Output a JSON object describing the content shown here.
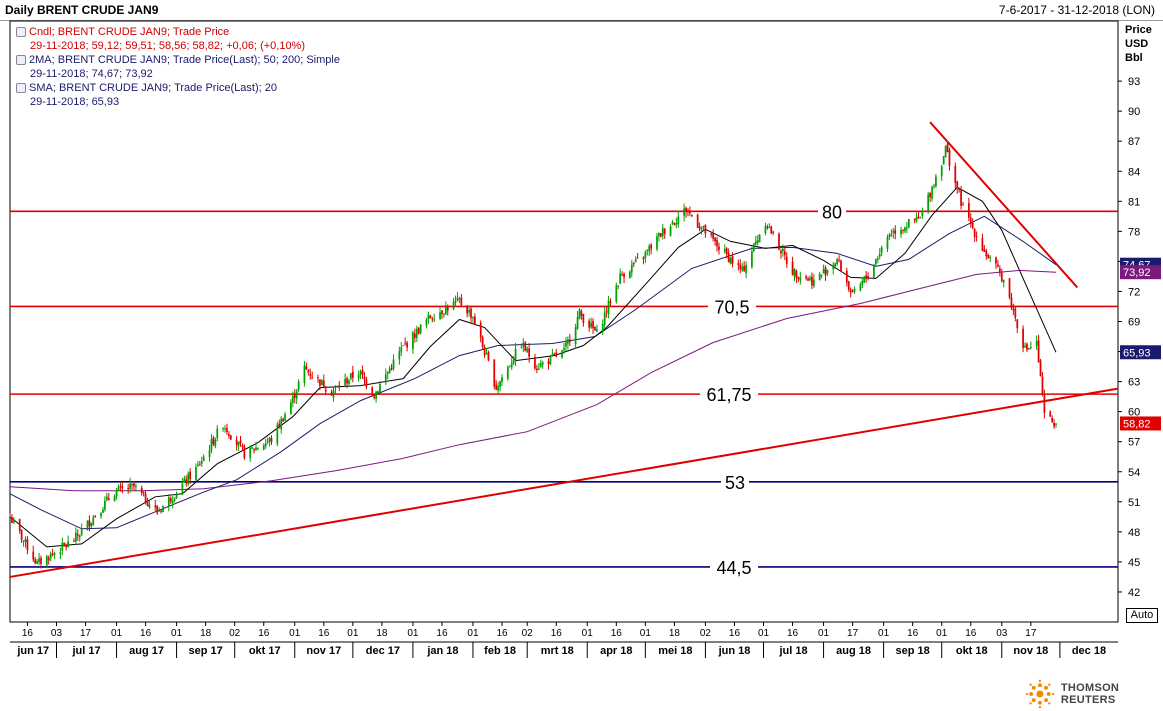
{
  "header": {
    "title": "Daily BRENT CRUDE JAN9",
    "date_range": "7-6-2017 - 31-12-2018 (LON)"
  },
  "legend": [
    {
      "line1": "Cndl; BRENT CRUDE JAN9; Trade Price",
      "line2": "29-11-2018; 59,12; 59,51; 58,56; 58,82; +0,06; (+0,10%)",
      "color": "#d00000"
    },
    {
      "line1": "2MA; BRENT CRUDE JAN9; Trade Price(Last);  50; 200; Simple",
      "line2": "29-11-2018; 74,67; 73,92",
      "color": "#1a1a6e"
    },
    {
      "line1": "SMA; BRENT CRUDE JAN9; Trade Price(Last);  20",
      "line2": "29-11-2018; 65,93",
      "color": "#1a1a6e"
    }
  ],
  "auto_label": "Auto",
  "logo_text": "THOMSON REUTERS",
  "logo_icon": "thomson-reuters-logo-icon",
  "chart_data": {
    "type": "candlestick",
    "title": "Daily BRENT CRUDE JAN9",
    "ylabel_lines": [
      "Price",
      "USD",
      "Bbl"
    ],
    "ylim": [
      39,
      99
    ],
    "yticks": [
      42,
      45,
      48,
      51,
      54,
      57,
      60,
      63,
      66,
      69,
      72,
      75,
      78,
      81,
      84,
      87,
      90,
      93
    ],
    "x_day_ticks": [
      "16",
      "03",
      "17",
      "01",
      "16",
      "01",
      "18",
      "02",
      "16",
      "01",
      "16",
      "01",
      "18",
      "01",
      "16",
      "01",
      "16",
      "02",
      "16",
      "01",
      "16",
      "01",
      "18",
      "02",
      "16",
      "01",
      "16",
      "01",
      "17",
      "01",
      "16",
      "01",
      "16",
      "03",
      "17"
    ],
    "x_month_ticks": [
      "jun 17",
      "jul 17",
      "aug 17",
      "sep 17",
      "okt 17",
      "nov 17",
      "dec 17",
      "jan 18",
      "feb 18",
      "mrt 18",
      "apr 18",
      "mei 18",
      "jun 18",
      "jul 18",
      "aug 18",
      "sep 18",
      "okt 18",
      "nov 18",
      "dec 18"
    ],
    "price_path": [
      [
        "2017-06-07",
        49.5
      ],
      [
        "2017-06-21",
        44.8
      ],
      [
        "2017-07-10",
        47.2
      ],
      [
        "2017-07-31",
        52.0
      ],
      [
        "2017-08-10",
        52.5
      ],
      [
        "2017-08-22",
        50.0
      ],
      [
        "2017-09-01",
        52.0
      ],
      [
        "2017-09-12",
        54.5
      ],
      [
        "2017-09-25",
        58.8
      ],
      [
        "2017-10-06",
        55.8
      ],
      [
        "2017-10-20",
        57.2
      ],
      [
        "2017-10-31",
        61.3
      ],
      [
        "2017-11-06",
        64.3
      ],
      [
        "2017-11-20",
        62.0
      ],
      [
        "2017-12-04",
        64.0
      ],
      [
        "2017-12-12",
        61.7
      ],
      [
        "2017-12-26",
        66.2
      ],
      [
        "2018-01-10",
        69.5
      ],
      [
        "2018-01-25",
        71.0
      ],
      [
        "2018-02-01",
        69.5
      ],
      [
        "2018-02-13",
        62.4
      ],
      [
        "2018-02-26",
        66.8
      ],
      [
        "2018-03-06",
        64.5
      ],
      [
        "2018-03-20",
        66.0
      ],
      [
        "2018-03-28",
        69.8
      ],
      [
        "2018-04-06",
        67.8
      ],
      [
        "2018-04-18",
        73.5
      ],
      [
        "2018-04-30",
        75.5
      ],
      [
        "2018-05-10",
        78.0
      ],
      [
        "2018-05-22",
        80.2
      ],
      [
        "2018-06-05",
        77.0
      ],
      [
        "2018-06-20",
        74.0
      ],
      [
        "2018-07-02",
        79.0
      ],
      [
        "2018-07-16",
        74.0
      ],
      [
        "2018-07-27",
        73.0
      ],
      [
        "2018-08-08",
        75.2
      ],
      [
        "2018-08-16",
        71.5
      ],
      [
        "2018-08-24",
        73.7
      ],
      [
        "2018-09-04",
        77.8
      ],
      [
        "2018-09-20",
        79.3
      ],
      [
        "2018-10-01",
        85.0
      ],
      [
        "2018-10-03",
        86.3
      ],
      [
        "2018-10-12",
        80.3
      ],
      [
        "2018-10-23",
        76.0
      ],
      [
        "2018-11-02",
        73.2
      ],
      [
        "2018-11-13",
        66.2
      ],
      [
        "2018-11-19",
        66.8
      ],
      [
        "2018-11-23",
        59.6
      ],
      [
        "2018-11-29",
        58.82
      ]
    ],
    "sma20_path": [
      [
        "2017-06-07",
        49.5
      ],
      [
        "2017-06-26",
        46.5
      ],
      [
        "2017-07-14",
        46.8
      ],
      [
        "2017-08-01",
        49.3
      ],
      [
        "2017-08-21",
        51.5
      ],
      [
        "2017-09-04",
        51.8
      ],
      [
        "2017-09-22",
        54.8
      ],
      [
        "2017-10-13",
        56.9
      ],
      [
        "2017-10-31",
        59.5
      ],
      [
        "2017-11-14",
        62.4
      ],
      [
        "2017-12-05",
        62.6
      ],
      [
        "2017-12-27",
        63.3
      ],
      [
        "2018-01-10",
        66.5
      ],
      [
        "2018-01-25",
        69.2
      ],
      [
        "2018-02-07",
        68.4
      ],
      [
        "2018-02-23",
        65.1
      ],
      [
        "2018-03-15",
        65.6
      ],
      [
        "2018-03-30",
        66.6
      ],
      [
        "2018-04-11",
        68.4
      ],
      [
        "2018-05-01",
        72.7
      ],
      [
        "2018-05-18",
        76.4
      ],
      [
        "2018-06-01",
        78.2
      ],
      [
        "2018-06-14",
        77.0
      ],
      [
        "2018-07-02",
        76.3
      ],
      [
        "2018-07-16",
        76.6
      ],
      [
        "2018-08-01",
        75.1
      ],
      [
        "2018-08-15",
        73.4
      ],
      [
        "2018-08-28",
        73.3
      ],
      [
        "2018-09-12",
        75.8
      ],
      [
        "2018-09-26",
        79.6
      ],
      [
        "2018-10-09",
        82.4
      ],
      [
        "2018-10-22",
        81.0
      ],
      [
        "2018-11-01",
        78.1
      ],
      [
        "2018-11-12",
        73.3
      ],
      [
        "2018-11-29",
        65.93
      ]
    ],
    "ma50_path": [
      [
        "2017-06-07",
        51.8
      ],
      [
        "2017-06-23",
        50.2
      ],
      [
        "2017-07-14",
        48.3
      ],
      [
        "2017-08-01",
        48.4
      ],
      [
        "2017-08-21",
        50.0
      ],
      [
        "2017-09-14",
        51.9
      ],
      [
        "2017-10-02",
        53.2
      ],
      [
        "2017-10-25",
        56.0
      ],
      [
        "2017-11-14",
        58.8
      ],
      [
        "2017-12-05",
        61.1
      ],
      [
        "2018-01-02",
        63.3
      ],
      [
        "2018-01-25",
        65.6
      ],
      [
        "2018-02-14",
        66.6
      ],
      [
        "2018-03-14",
        66.8
      ],
      [
        "2018-04-05",
        67.5
      ],
      [
        "2018-04-26",
        70.2
      ],
      [
        "2018-05-25",
        74.3
      ],
      [
        "2018-06-25",
        76.3
      ],
      [
        "2018-07-16",
        76.4
      ],
      [
        "2018-08-08",
        75.8
      ],
      [
        "2018-08-28",
        74.5
      ],
      [
        "2018-09-14",
        75.2
      ],
      [
        "2018-10-05",
        77.8
      ],
      [
        "2018-10-23",
        79.5
      ],
      [
        "2018-11-12",
        77.0
      ],
      [
        "2018-11-29",
        74.67
      ]
    ],
    "ma200_path": [
      [
        "2017-06-07",
        52.5
      ],
      [
        "2017-07-10",
        52.1
      ],
      [
        "2017-08-14",
        52.1
      ],
      [
        "2017-09-15",
        52.3
      ],
      [
        "2017-10-20",
        53.1
      ],
      [
        "2017-11-22",
        54.1
      ],
      [
        "2017-12-26",
        55.3
      ],
      [
        "2018-01-25",
        56.7
      ],
      [
        "2018-03-01",
        58.0
      ],
      [
        "2018-04-06",
        60.7
      ],
      [
        "2018-05-04",
        63.9
      ],
      [
        "2018-06-05",
        66.9
      ],
      [
        "2018-07-13",
        69.3
      ],
      [
        "2018-08-20",
        70.8
      ],
      [
        "2018-09-20",
        72.3
      ],
      [
        "2018-10-19",
        73.7
      ],
      [
        "2018-11-10",
        74.1
      ],
      [
        "2018-11-29",
        73.92
      ]
    ],
    "horizontal_levels": [
      {
        "value": 80,
        "label": "80",
        "color": "#e00000"
      },
      {
        "value": 70.5,
        "label": "70,5",
        "color": "#e00000"
      },
      {
        "value": 61.75,
        "label": "61,75",
        "color": "#e00000"
      },
      {
        "value": 53,
        "label": "53",
        "color": "#00007f"
      },
      {
        "value": 44.5,
        "label": "44,5",
        "color": "#00007f"
      }
    ],
    "trendlines": [
      {
        "name": "support",
        "from": [
          "2017-06-07",
          43.5
        ],
        "to": [
          "2018-12-31",
          62.3
        ],
        "color": "#e00000"
      },
      {
        "name": "resistance",
        "from": [
          "2018-09-25",
          88.9
        ],
        "to": [
          "2018-12-10",
          72.4
        ],
        "color": "#e00000"
      }
    ],
    "last_value_tags": [
      {
        "label": "74,67",
        "value": 74.67,
        "bg": "#1a1a6e",
        "fg": "#ffffff"
      },
      {
        "label": "73,92",
        "value": 73.92,
        "bg": "#7a1a7a",
        "fg": "#ffffff"
      },
      {
        "label": "65,93",
        "value": 65.93,
        "bg": "#1a1a6e",
        "fg": "#ffffff"
      },
      {
        "label": "58,82",
        "value": 58.82,
        "bg": "#e00000",
        "fg": "#ffffff"
      }
    ],
    "colors": {
      "up": "#00a000",
      "down": "#e00000",
      "sma20": "#000000",
      "ma50": "#1a1a6e",
      "ma200": "#7a1a7a"
    }
  }
}
